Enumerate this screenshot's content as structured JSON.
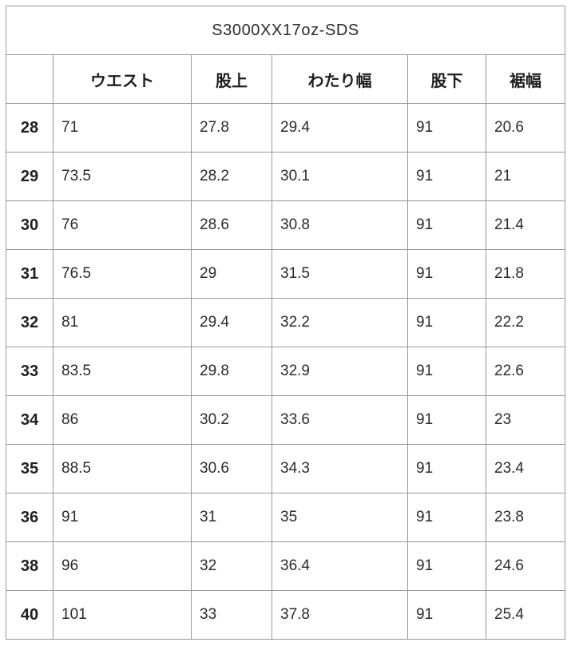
{
  "table": {
    "title": "S3000XX17oz-SDS",
    "columns": [
      "",
      "ウエスト",
      "股上",
      "わたり幅",
      "股下",
      "裾幅"
    ],
    "column_keys": [
      "size",
      "waist",
      "rise",
      "thigh_width",
      "inseam",
      "hem_width"
    ],
    "rows": [
      {
        "size": "28",
        "values": [
          "71",
          "27.8",
          "29.4",
          "91",
          "20.6"
        ]
      },
      {
        "size": "29",
        "values": [
          "73.5",
          "28.2",
          "30.1",
          "91",
          "21"
        ]
      },
      {
        "size": "30",
        "values": [
          "76",
          "28.6",
          "30.8",
          "91",
          "21.4"
        ]
      },
      {
        "size": "31",
        "values": [
          "76.5",
          "29",
          "31.5",
          "91",
          "21.8"
        ]
      },
      {
        "size": "32",
        "values": [
          "81",
          "29.4",
          "32.2",
          "91",
          "22.2"
        ]
      },
      {
        "size": "33",
        "values": [
          "83.5",
          "29.8",
          "32.9",
          "91",
          "22.6"
        ]
      },
      {
        "size": "34",
        "values": [
          "86",
          "30.2",
          "33.6",
          "91",
          "23"
        ]
      },
      {
        "size": "35",
        "values": [
          "88.5",
          "30.6",
          "34.3",
          "91",
          "23.4"
        ]
      },
      {
        "size": "36",
        "values": [
          "91",
          "31",
          "35",
          "91",
          "23.8"
        ]
      },
      {
        "size": "38",
        "values": [
          "96",
          "32",
          "36.4",
          "91",
          "24.6"
        ]
      },
      {
        "size": "40",
        "values": [
          "101",
          "33",
          "37.8",
          "91",
          "25.4"
        ]
      }
    ]
  },
  "colors": {
    "border": "#999999",
    "text": "#222222",
    "background": "#ffffff"
  }
}
